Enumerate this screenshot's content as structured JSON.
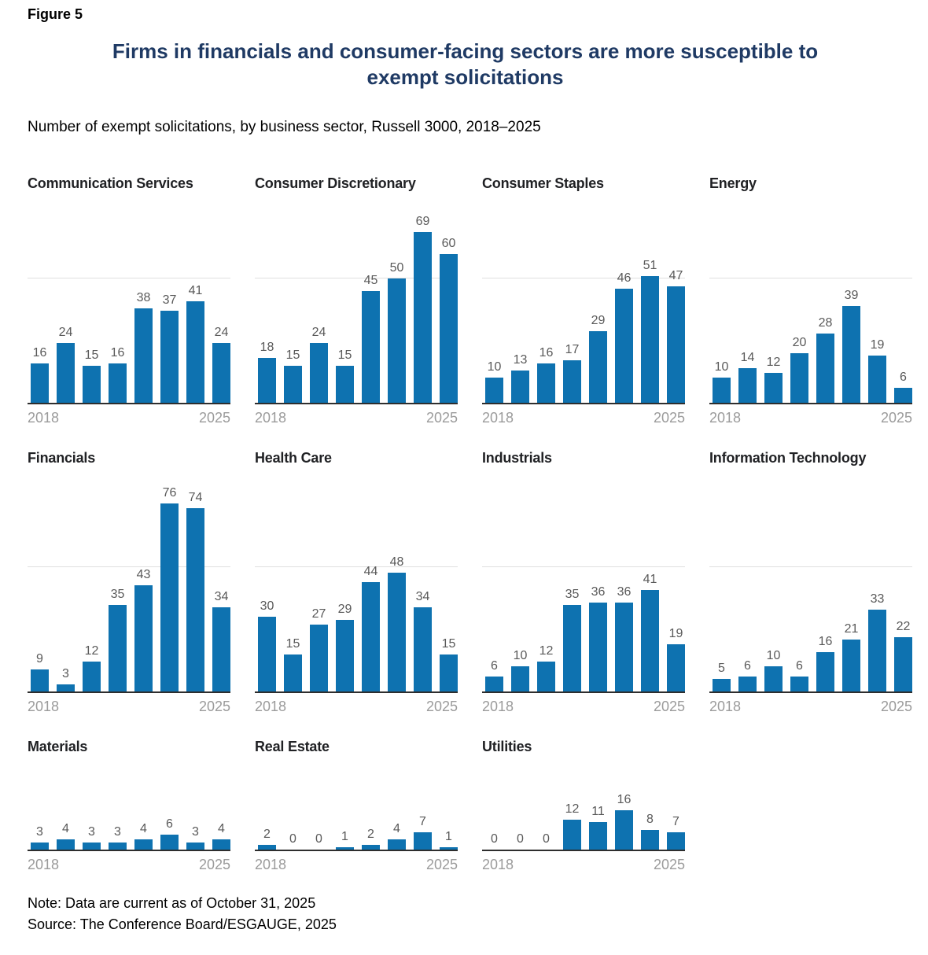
{
  "figure_label": "Figure 5",
  "title": {
    "line1": "Firms in financials and consumer-facing sectors are more susceptible to",
    "line2": "exempt solicitations"
  },
  "subtitle": "Number of exempt solicitations, by business sector, Russell 3000, 2018–2025",
  "note": "Note: Data are current as of October 31, 2025",
  "source": "Source: The Conference Board/ESGAUGE, 2025",
  "colors": {
    "bar": "#0e72b0",
    "main_title": "#1f3a64",
    "chart_title": "#202124",
    "value_label": "#595959",
    "year_label": "#9b9b9b",
    "gridline": "#e0e0e0",
    "baseline": "#2e2e2e"
  },
  "axis": {
    "x_start_label": "2018",
    "x_end_label": "2025"
  },
  "chart_data": {
    "type": "bar",
    "x": [
      2018,
      2019,
      2020,
      2021,
      2022,
      2023,
      2024,
      2025
    ],
    "gridline_value": 50,
    "grid": "single horizontal line at 50 on rows 1-2, none on row 3",
    "legend": "none",
    "value_labels": "above each bar",
    "rows": [
      [
        0,
        1,
        2,
        3
      ],
      [
        4,
        5,
        6,
        7
      ],
      [
        8,
        9,
        10
      ]
    ],
    "row_ylim": [
      [
        0,
        80
      ],
      [
        0,
        86
      ],
      [
        0,
        33
      ]
    ],
    "series": [
      {
        "name": "Communication Services",
        "values": [
          16,
          24,
          15,
          16,
          38,
          37,
          41,
          24
        ]
      },
      {
        "name": "Consumer Discretionary",
        "values": [
          18,
          15,
          24,
          15,
          45,
          50,
          69,
          60
        ]
      },
      {
        "name": "Consumer Staples",
        "values": [
          10,
          13,
          16,
          17,
          29,
          46,
          51,
          47
        ]
      },
      {
        "name": "Energy",
        "values": [
          10,
          14,
          12,
          20,
          28,
          39,
          19,
          6
        ]
      },
      {
        "name": "Financials",
        "values": [
          9,
          3,
          12,
          35,
          43,
          76,
          74,
          34
        ]
      },
      {
        "name": "Health Care",
        "values": [
          30,
          15,
          27,
          29,
          44,
          48,
          34,
          15
        ]
      },
      {
        "name": "Industrials",
        "values": [
          6,
          10,
          12,
          35,
          36,
          36,
          41,
          19
        ]
      },
      {
        "name": "Information Technology",
        "values": [
          5,
          6,
          10,
          6,
          16,
          21,
          33,
          22
        ]
      },
      {
        "name": "Materials",
        "values": [
          3,
          4,
          3,
          3,
          4,
          6,
          3,
          4
        ]
      },
      {
        "name": "Real Estate",
        "values": [
          2,
          0,
          0,
          1,
          2,
          4,
          7,
          1
        ]
      },
      {
        "name": "Utilities",
        "values": [
          0,
          0,
          0,
          12,
          11,
          16,
          8,
          7
        ]
      }
    ]
  }
}
